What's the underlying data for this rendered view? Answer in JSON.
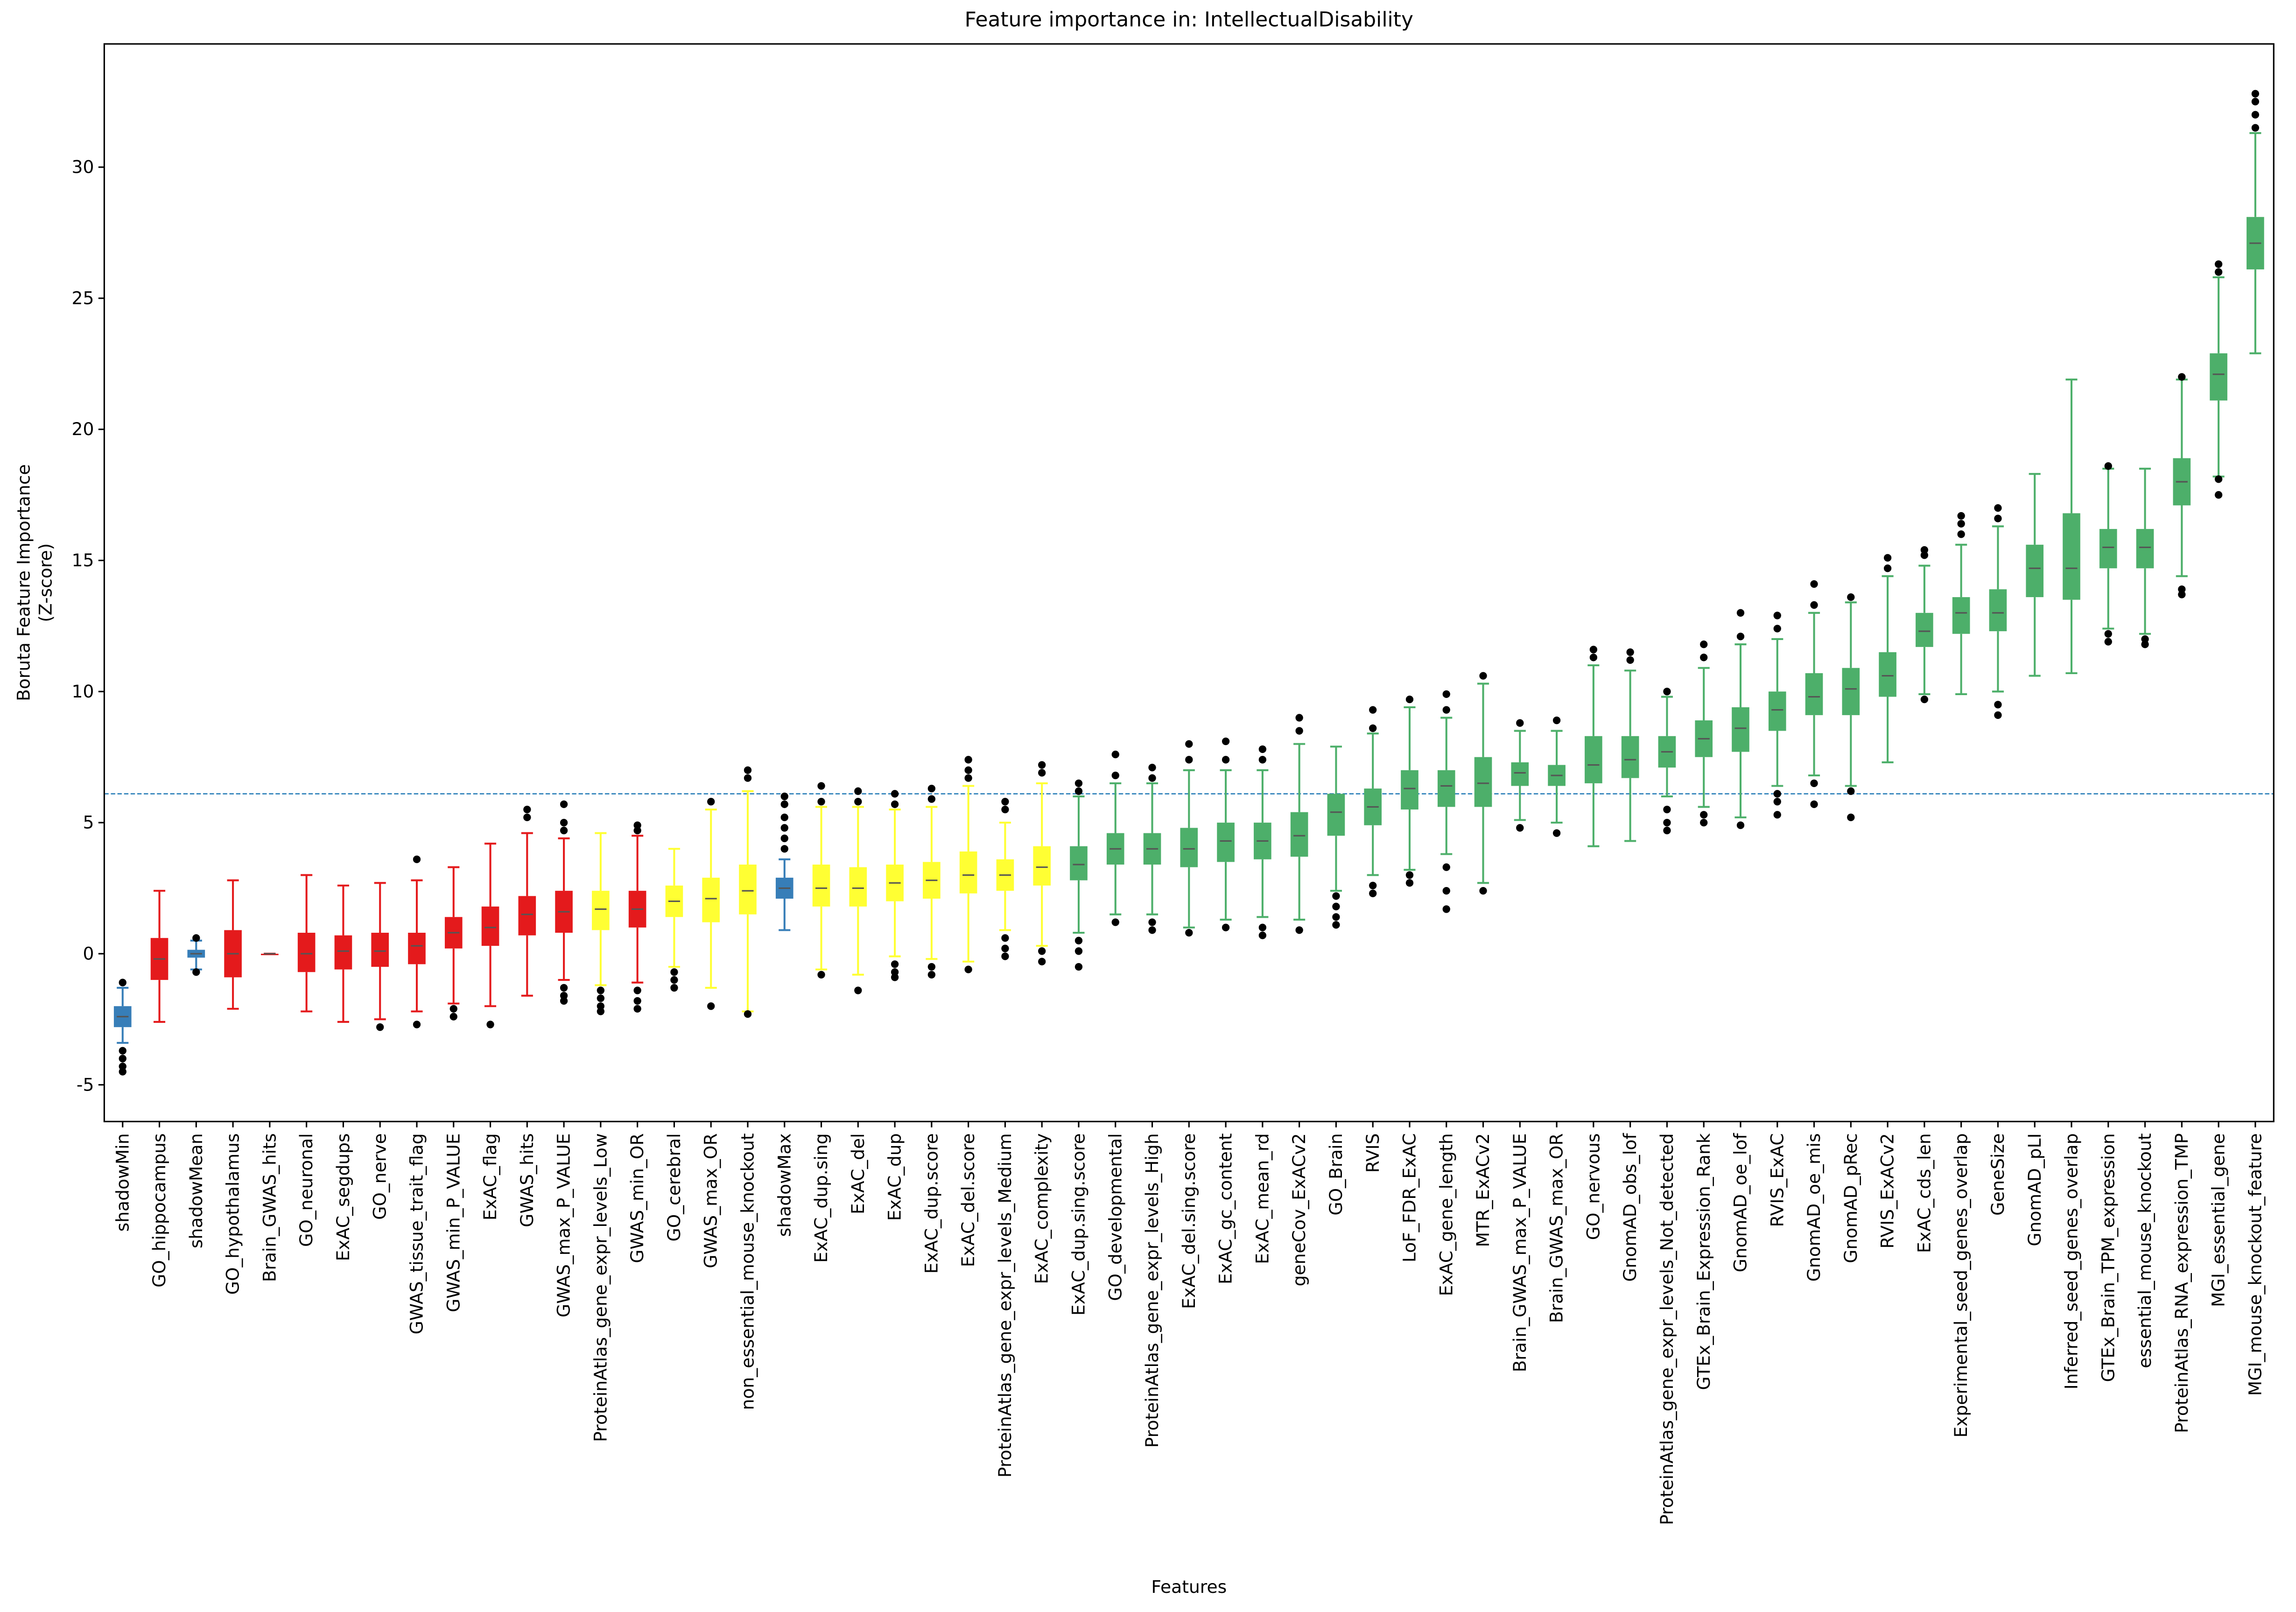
{
  "chart_data": {
    "type": "box",
    "title": "Feature importance in: IntellectualDisability",
    "xlabel": "Features",
    "ylabel": [
      "Boruta Feature Importance",
      "(Z-score)"
    ],
    "ylim": [
      -6.4,
      34.7
    ],
    "yticks": [
      -5,
      0,
      5,
      10,
      15,
      20,
      25,
      30
    ],
    "threshold": 6.1,
    "threshold_color": "#1f77b4",
    "categories": [
      "shadowMin",
      "GO_hippocampus",
      "shadowMean",
      "GO_hypothalamus",
      "Brain_GWAS_hits",
      "GO_neuronal",
      "ExAC_segdups",
      "GO_nerve",
      "GWAS_tissue_trait_flag",
      "GWAS_min_P_VALUE",
      "ExAC_flag",
      "GWAS_hits",
      "GWAS_max_P_VALUE",
      "ProteinAtlas_gene_expr_levels_Low",
      "GWAS_min_OR",
      "GO_cerebral",
      "GWAS_max_OR",
      "non_essential_mouse_knockout",
      "shadowMax",
      "ExAC_dup.sing",
      "ExAC_del",
      "ExAC_dup",
      "ExAC_dup.score",
      "ExAC_del.score",
      "ProteinAtlas_gene_expr_levels_Medium",
      "ExAC_complexity",
      "ExAC_dup.sing.score",
      "GO_developmental",
      "ProteinAtlas_gene_expr_levels_High",
      "ExAC_del.sing.score",
      "ExAC_gc_content",
      "ExAC_mean_rd",
      "geneCov_ExACv2",
      "GO_Brain",
      "RVIS",
      "LoF_FDR_ExAC",
      "ExAC_gene_length",
      "MTR_ExACv2",
      "Brain_GWAS_max_P_VALUE",
      "Brain_GWAS_max_OR",
      "GO_nervous",
      "GnomAD_obs_lof",
      "ProteinAtlas_gene_expr_levels_Not_detected",
      "GTEx_Brain_Expression_Rank",
      "GnomAD_oe_lof",
      "RVIS_ExAC",
      "GnomAD_oe_mis",
      "GnomAD_pRec",
      "RVIS_ExACv2",
      "ExAC_cds_len",
      "Experimental_seed_genes_overlap",
      "GeneSize",
      "GnomAD_pLI",
      "Inferred_seed_genes_overlap",
      "GTEx_Brain_TPM_expression",
      "essential_mouse_knockout",
      "ProteinAtlas_RNA_expression_TMP",
      "MGI_essential_gene",
      "MGI_mouse_knockout_feature"
    ],
    "colors": [
      "#377eb8",
      "#e41a1c",
      "#377eb8",
      "#e41a1c",
      "#e41a1c",
      "#e41a1c",
      "#e41a1c",
      "#e41a1c",
      "#e41a1c",
      "#e41a1c",
      "#e41a1c",
      "#e41a1c",
      "#e41a1c",
      "#ffff33",
      "#e41a1c",
      "#ffff33",
      "#ffff33",
      "#ffff33",
      "#377eb8",
      "#ffff33",
      "#ffff33",
      "#ffff33",
      "#ffff33",
      "#ffff33",
      "#ffff33",
      "#ffff33",
      "#4daf6a",
      "#4daf6a",
      "#4daf6a",
      "#4daf6a",
      "#4daf6a",
      "#4daf6a",
      "#4daf6a",
      "#4daf6a",
      "#4daf6a",
      "#4daf6a",
      "#4daf6a",
      "#4daf6a",
      "#4daf6a",
      "#4daf6a",
      "#4daf6a",
      "#4daf6a",
      "#4daf6a",
      "#4daf6a",
      "#4daf6a",
      "#4daf6a",
      "#4daf6a",
      "#4daf6a",
      "#4daf6a",
      "#4daf6a",
      "#4daf6a",
      "#4daf6a",
      "#4daf6a",
      "#4daf6a",
      "#4daf6a",
      "#4daf6a",
      "#4daf6a",
      "#4daf6a",
      "#4daf6a"
    ],
    "boxes": [
      {
        "min": -3.4,
        "q1": -2.8,
        "median": -2.4,
        "q3": -2.0,
        "max": -1.3,
        "outliers": [
          -1.1,
          -3.7,
          -4.0,
          -4.3,
          -4.5
        ]
      },
      {
        "min": -2.6,
        "q1": -1.0,
        "median": -0.2,
        "q3": 0.6,
        "max": 2.4,
        "outliers": []
      },
      {
        "min": -0.6,
        "q1": -0.15,
        "median": 0,
        "q3": 0.15,
        "max": 0.5,
        "outliers": [
          0.6,
          -0.7
        ]
      },
      {
        "min": -2.1,
        "q1": -0.9,
        "median": 0,
        "q3": 0.9,
        "max": 2.8,
        "outliers": []
      },
      {
        "min": 0,
        "q1": 0,
        "median": 0,
        "q3": 0,
        "max": 0,
        "outliers": []
      },
      {
        "min": -2.2,
        "q1": -0.7,
        "median": 0,
        "q3": 0.8,
        "max": 3.0,
        "outliers": []
      },
      {
        "min": -2.6,
        "q1": -0.6,
        "median": 0.1,
        "q3": 0.7,
        "max": 2.6,
        "outliers": []
      },
      {
        "min": -2.5,
        "q1": -0.5,
        "median": 0.1,
        "q3": 0.8,
        "max": 2.7,
        "outliers": [
          -2.8
        ]
      },
      {
        "min": -2.2,
        "q1": -0.4,
        "median": 0.3,
        "q3": 0.8,
        "max": 2.8,
        "outliers": [
          3.6,
          -2.7
        ]
      },
      {
        "min": -1.9,
        "q1": 0.2,
        "median": 0.8,
        "q3": 1.4,
        "max": 3.3,
        "outliers": [
          -2.1,
          -2.4
        ]
      },
      {
        "min": -2.0,
        "q1": 0.3,
        "median": 1.0,
        "q3": 1.8,
        "max": 4.2,
        "outliers": [
          -2.7
        ]
      },
      {
        "min": -1.6,
        "q1": 0.7,
        "median": 1.5,
        "q3": 2.2,
        "max": 4.6,
        "outliers": [
          5.2,
          5.5
        ]
      },
      {
        "min": -1.0,
        "q1": 0.8,
        "median": 1.6,
        "q3": 2.4,
        "max": 4.4,
        "outliers": [
          4.7,
          5.0,
          5.7,
          -1.3,
          -1.6,
          -1.8
        ]
      },
      {
        "min": -1.2,
        "q1": 0.9,
        "median": 1.7,
        "q3": 2.4,
        "max": 4.6,
        "outliers": [
          -1.4,
          -1.7,
          -2.0,
          -2.2
        ]
      },
      {
        "min": -1.1,
        "q1": 1.0,
        "median": 1.7,
        "q3": 2.4,
        "max": 4.5,
        "outliers": [
          4.7,
          4.9,
          -1.4,
          -1.8,
          -2.1
        ]
      },
      {
        "min": -0.5,
        "q1": 1.4,
        "median": 2.0,
        "q3": 2.6,
        "max": 4.0,
        "outliers": [
          -0.7,
          -1.0,
          -1.3
        ]
      },
      {
        "min": -1.3,
        "q1": 1.2,
        "median": 2.1,
        "q3": 2.9,
        "max": 5.5,
        "outliers": [
          5.8,
          -2.0
        ]
      },
      {
        "min": -2.2,
        "q1": 1.5,
        "median": 2.4,
        "q3": 3.4,
        "max": 6.2,
        "outliers": [
          6.7,
          7.0,
          -2.3
        ]
      },
      {
        "min": 0.9,
        "q1": 2.1,
        "median": 2.5,
        "q3": 2.9,
        "max": 3.6,
        "outliers": [
          4.0,
          4.4,
          4.8,
          5.2,
          5.7,
          6.0
        ]
      },
      {
        "min": -0.6,
        "q1": 1.8,
        "median": 2.5,
        "q3": 3.4,
        "max": 5.6,
        "outliers": [
          5.8,
          6.4,
          -0.8
        ]
      },
      {
        "min": -0.8,
        "q1": 1.8,
        "median": 2.5,
        "q3": 3.3,
        "max": 5.6,
        "outliers": [
          5.8,
          6.2,
          -1.4
        ]
      },
      {
        "min": -0.1,
        "q1": 2.0,
        "median": 2.7,
        "q3": 3.4,
        "max": 5.5,
        "outliers": [
          5.7,
          6.1,
          -0.4,
          -0.7,
          -0.9
        ]
      },
      {
        "min": -0.2,
        "q1": 2.1,
        "median": 2.8,
        "q3": 3.5,
        "max": 5.6,
        "outliers": [
          5.9,
          6.3,
          -0.5,
          -0.8
        ]
      },
      {
        "min": -0.3,
        "q1": 2.3,
        "median": 3.0,
        "q3": 3.9,
        "max": 6.4,
        "outliers": [
          6.7,
          7.0,
          7.4,
          -0.6
        ]
      },
      {
        "min": 0.9,
        "q1": 2.4,
        "median": 3.0,
        "q3": 3.6,
        "max": 5.0,
        "outliers": [
          5.5,
          5.8,
          0.6,
          0.2,
          -0.1
        ]
      },
      {
        "min": 0.3,
        "q1": 2.6,
        "median": 3.3,
        "q3": 4.1,
        "max": 6.5,
        "outliers": [
          6.9,
          7.2,
          0.1,
          -0.3
        ]
      },
      {
        "min": 0.8,
        "q1": 2.8,
        "median": 3.4,
        "q3": 4.1,
        "max": 6.0,
        "outliers": [
          6.2,
          6.5,
          0.5,
          0.1,
          -0.5
        ]
      },
      {
        "min": 1.5,
        "q1": 3.4,
        "median": 4.0,
        "q3": 4.6,
        "max": 6.5,
        "outliers": [
          6.8,
          7.6,
          1.2
        ]
      },
      {
        "min": 1.5,
        "q1": 3.4,
        "median": 4.0,
        "q3": 4.6,
        "max": 6.5,
        "outliers": [
          6.7,
          7.1,
          1.2,
          0.9
        ]
      },
      {
        "min": 1.0,
        "q1": 3.3,
        "median": 4.0,
        "q3": 4.8,
        "max": 7.0,
        "outliers": [
          7.4,
          8.0,
          0.8
        ]
      },
      {
        "min": 1.3,
        "q1": 3.5,
        "median": 4.3,
        "q3": 5.0,
        "max": 7.0,
        "outliers": [
          7.4,
          8.1,
          1.0
        ]
      },
      {
        "min": 1.4,
        "q1": 3.6,
        "median": 4.3,
        "q3": 5.0,
        "max": 7.0,
        "outliers": [
          7.4,
          7.8,
          1.0,
          0.7
        ]
      },
      {
        "min": 1.3,
        "q1": 3.7,
        "median": 4.5,
        "q3": 5.4,
        "max": 8.0,
        "outliers": [
          8.5,
          9.0,
          0.9
        ]
      },
      {
        "min": 2.4,
        "q1": 4.5,
        "median": 5.4,
        "q3": 6.1,
        "max": 7.9,
        "outliers": [
          2.2,
          1.8,
          1.4,
          1.1
        ]
      },
      {
        "min": 3.0,
        "q1": 4.9,
        "median": 5.6,
        "q3": 6.3,
        "max": 8.4,
        "outliers": [
          8.6,
          9.3,
          2.6,
          2.3
        ]
      },
      {
        "min": 3.2,
        "q1": 5.5,
        "median": 6.3,
        "q3": 7.0,
        "max": 9.4,
        "outliers": [
          9.7,
          3.0,
          2.7
        ]
      },
      {
        "min": 3.8,
        "q1": 5.6,
        "median": 6.4,
        "q3": 7.0,
        "max": 9.0,
        "outliers": [
          9.3,
          9.9,
          3.3,
          2.4,
          1.7
        ]
      },
      {
        "min": 2.7,
        "q1": 5.6,
        "median": 6.5,
        "q3": 7.5,
        "max": 10.3,
        "outliers": [
          10.6,
          2.4
        ]
      },
      {
        "min": 5.1,
        "q1": 6.4,
        "median": 6.9,
        "q3": 7.3,
        "max": 8.5,
        "outliers": [
          8.8,
          4.8
        ]
      },
      {
        "min": 5.0,
        "q1": 6.4,
        "median": 6.8,
        "q3": 7.2,
        "max": 8.5,
        "outliers": [
          8.9,
          4.6
        ]
      },
      {
        "min": 4.1,
        "q1": 6.5,
        "median": 7.2,
        "q3": 8.3,
        "max": 11.0,
        "outliers": [
          11.3,
          11.6
        ]
      },
      {
        "min": 4.3,
        "q1": 6.7,
        "median": 7.4,
        "q3": 8.3,
        "max": 10.8,
        "outliers": [
          11.2,
          11.5
        ]
      },
      {
        "min": 6.0,
        "q1": 7.1,
        "median": 7.7,
        "q3": 8.3,
        "max": 9.8,
        "outliers": [
          10.0,
          5.5,
          5.0,
          4.7
        ]
      },
      {
        "min": 5.6,
        "q1": 7.5,
        "median": 8.2,
        "q3": 8.9,
        "max": 10.9,
        "outliers": [
          11.3,
          11.8,
          5.3,
          5.0
        ]
      },
      {
        "min": 5.2,
        "q1": 7.7,
        "median": 8.6,
        "q3": 9.4,
        "max": 11.8,
        "outliers": [
          12.1,
          13.0,
          4.9
        ]
      },
      {
        "min": 6.4,
        "q1": 8.5,
        "median": 9.3,
        "q3": 10.0,
        "max": 12.0,
        "outliers": [
          12.4,
          12.9,
          6.1,
          5.8,
          5.3
        ]
      },
      {
        "min": 6.8,
        "q1": 9.1,
        "median": 9.8,
        "q3": 10.7,
        "max": 13.0,
        "outliers": [
          13.3,
          14.1,
          6.5,
          5.7
        ]
      },
      {
        "min": 6.4,
        "q1": 9.1,
        "median": 10.1,
        "q3": 10.9,
        "max": 13.4,
        "outliers": [
          13.6,
          6.2,
          5.2
        ]
      },
      {
        "min": 7.3,
        "q1": 9.8,
        "median": 10.6,
        "q3": 11.5,
        "max": 14.4,
        "outliers": [
          14.7,
          15.1
        ]
      },
      {
        "min": 9.9,
        "q1": 11.7,
        "median": 12.3,
        "q3": 13.0,
        "max": 14.8,
        "outliers": [
          15.2,
          15.4,
          9.7
        ]
      },
      {
        "min": 9.9,
        "q1": 12.2,
        "median": 13.0,
        "q3": 13.6,
        "max": 15.6,
        "outliers": [
          16.0,
          16.4,
          16.7
        ]
      },
      {
        "min": 10.0,
        "q1": 12.3,
        "median": 13.0,
        "q3": 13.9,
        "max": 16.3,
        "outliers": [
          16.6,
          17.0,
          9.5,
          9.1
        ]
      },
      {
        "min": 10.6,
        "q1": 13.6,
        "median": 14.7,
        "q3": 15.6,
        "max": 18.3,
        "outliers": []
      },
      {
        "min": 10.7,
        "q1": 13.5,
        "median": 14.7,
        "q3": 16.8,
        "max": 21.9,
        "outliers": []
      },
      {
        "min": 12.4,
        "q1": 14.7,
        "median": 15.5,
        "q3": 16.2,
        "max": 18.5,
        "outliers": [
          18.6,
          12.2,
          11.9
        ]
      },
      {
        "min": 12.2,
        "q1": 14.7,
        "median": 15.5,
        "q3": 16.2,
        "max": 18.5,
        "outliers": [
          12.0,
          11.8
        ]
      },
      {
        "min": 14.4,
        "q1": 17.1,
        "median": 18.0,
        "q3": 18.9,
        "max": 21.9,
        "outliers": [
          22.0,
          13.9,
          13.7
        ]
      },
      {
        "min": 18.2,
        "q1": 21.1,
        "median": 22.1,
        "q3": 22.9,
        "max": 25.8,
        "outliers": [
          26.0,
          26.3,
          18.1,
          17.5
        ]
      },
      {
        "min": 22.9,
        "q1": 26.1,
        "median": 27.1,
        "q3": 28.1,
        "max": 31.3,
        "outliers": [
          31.5,
          32.0,
          32.5,
          32.8
        ]
      }
    ]
  }
}
